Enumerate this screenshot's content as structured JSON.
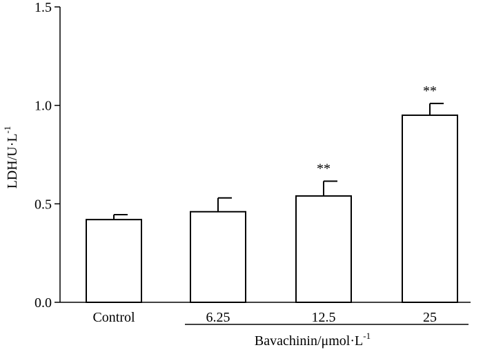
{
  "chart_data": {
    "type": "bar",
    "categories": [
      "Control",
      "6.25",
      "12.5",
      "25"
    ],
    "values": [
      0.42,
      0.46,
      0.54,
      0.95
    ],
    "errors": [
      0.025,
      0.07,
      0.075,
      0.06
    ],
    "significance": [
      "",
      "",
      "**",
      "**"
    ],
    "ylim": [
      0,
      1.5
    ],
    "yticks": [
      "0.0",
      "0.5",
      "1.0",
      "1.5"
    ],
    "ylabel": {
      "main": "LDH/U·L",
      "superscript": "-1"
    },
    "group_label": {
      "main": "Bavachinin/μmol·L",
      "superscript": "-1"
    },
    "group_member_indices": [
      1,
      2,
      3
    ],
    "grid": false,
    "legend": "none"
  }
}
